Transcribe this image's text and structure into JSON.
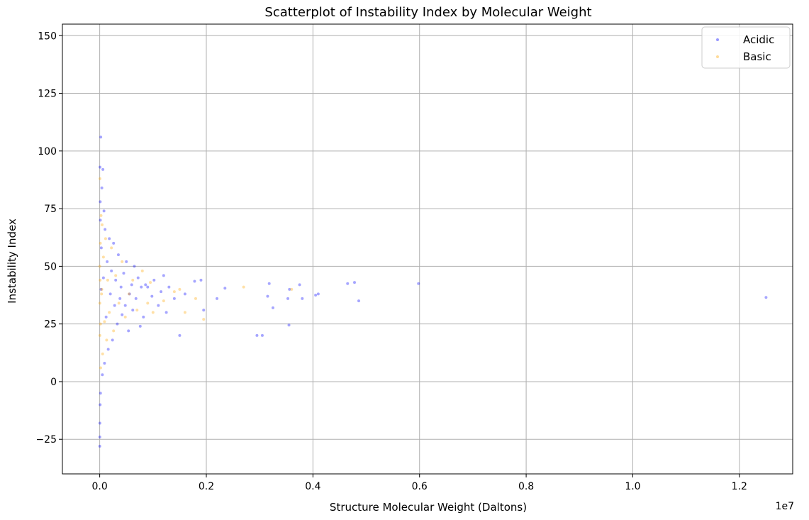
{
  "chart_data": {
    "type": "scatter",
    "title": "Scatterplot of Instability Index by Molecular Weight",
    "xlabel": "Structure Molecular Weight (Daltons)",
    "ylabel": "Instability Index",
    "x_offset_label": "1e7",
    "x_scale_exponent": 7,
    "xlim": [
      -700000,
      13000000
    ],
    "ylim": [
      -40,
      155
    ],
    "x_ticks": [
      0,
      2000000,
      4000000,
      6000000,
      8000000,
      10000000,
      12000000
    ],
    "x_tick_labels": [
      "0.0",
      "0.2",
      "0.4",
      "0.6",
      "0.8",
      "1.0",
      "1.2"
    ],
    "y_ticks": [
      -25,
      0,
      25,
      50,
      75,
      100,
      125,
      150
    ],
    "y_tick_labels": [
      "−25",
      "0",
      "25",
      "50",
      "75",
      "100",
      "125",
      "150"
    ],
    "grid": true,
    "legend_position": "top-right",
    "series": [
      {
        "name": "Acidic",
        "color": "#0000ff",
        "points": [
          [
            12500000,
            36.5
          ],
          [
            5980000,
            42.5
          ],
          [
            4860000,
            35
          ],
          [
            4780000,
            43
          ],
          [
            4650000,
            42.5
          ],
          [
            4100000,
            38
          ],
          [
            4050000,
            37.5
          ],
          [
            3800000,
            36
          ],
          [
            3750000,
            42
          ],
          [
            3560000,
            40
          ],
          [
            3530000,
            36
          ],
          [
            3550000,
            24.5
          ],
          [
            3250000,
            32
          ],
          [
            3180000,
            42.5
          ],
          [
            3150000,
            37
          ],
          [
            3050000,
            20
          ],
          [
            2950000,
            20
          ],
          [
            2350000,
            40.5
          ],
          [
            2200000,
            36
          ],
          [
            1950000,
            31
          ],
          [
            1900000,
            44
          ],
          [
            1780000,
            43.5
          ],
          [
            1600000,
            38
          ],
          [
            1500000,
            20
          ],
          [
            1400000,
            36
          ],
          [
            1300000,
            41
          ],
          [
            1250000,
            30
          ],
          [
            1200000,
            46
          ],
          [
            1150000,
            39
          ],
          [
            1100000,
            33
          ],
          [
            1020000,
            44
          ],
          [
            980000,
            37
          ],
          [
            900000,
            41
          ],
          [
            860000,
            42
          ],
          [
            820000,
            28
          ],
          [
            780000,
            41
          ],
          [
            760000,
            24
          ],
          [
            720000,
            45
          ],
          [
            680000,
            36
          ],
          [
            650000,
            50
          ],
          [
            620000,
            31
          ],
          [
            600000,
            42
          ],
          [
            560000,
            38
          ],
          [
            540000,
            22
          ],
          [
            500000,
            52
          ],
          [
            480000,
            33
          ],
          [
            450000,
            47
          ],
          [
            420000,
            29
          ],
          [
            400000,
            41
          ],
          [
            380000,
            36
          ],
          [
            350000,
            55
          ],
          [
            330000,
            25
          ],
          [
            300000,
            44
          ],
          [
            280000,
            33
          ],
          [
            260000,
            60
          ],
          [
            240000,
            18
          ],
          [
            220000,
            48
          ],
          [
            200000,
            38
          ],
          [
            180000,
            62
          ],
          [
            160000,
            14
          ],
          [
            140000,
            52
          ],
          [
            120000,
            28
          ],
          [
            100000,
            66
          ],
          [
            90000,
            8
          ],
          [
            80000,
            74
          ],
          [
            70000,
            45
          ],
          [
            60000,
            92
          ],
          [
            50000,
            3
          ],
          [
            40000,
            84
          ],
          [
            30000,
            58
          ],
          [
            20000,
            106
          ],
          [
            15000,
            -5
          ],
          [
            10000,
            78
          ],
          [
            5000,
            93
          ],
          [
            3000,
            -18
          ],
          [
            2000,
            -24
          ],
          [
            1000,
            -28
          ],
          [
            8000,
            -10
          ],
          [
            12000,
            70
          ],
          [
            25000,
            40
          ]
        ]
      },
      {
        "name": "Basic",
        "color": "#ffa500",
        "points": [
          [
            3600000,
            40
          ],
          [
            2700000,
            41
          ],
          [
            1950000,
            27
          ],
          [
            1800000,
            36
          ],
          [
            1600000,
            30
          ],
          [
            1500000,
            40
          ],
          [
            1400000,
            39
          ],
          [
            1200000,
            35
          ],
          [
            1000000,
            30
          ],
          [
            950000,
            43
          ],
          [
            900000,
            34
          ],
          [
            800000,
            48
          ],
          [
            700000,
            31
          ],
          [
            620000,
            44
          ],
          [
            550000,
            38
          ],
          [
            480000,
            28
          ],
          [
            420000,
            52
          ],
          [
            360000,
            34
          ],
          [
            300000,
            46
          ],
          [
            260000,
            22
          ],
          [
            220000,
            58
          ],
          [
            180000,
            30
          ],
          [
            150000,
            44
          ],
          [
            130000,
            18
          ],
          [
            110000,
            62
          ],
          [
            90000,
            26
          ],
          [
            70000,
            54
          ],
          [
            55000,
            12
          ],
          [
            45000,
            68
          ],
          [
            35000,
            38
          ],
          [
            25000,
            72
          ],
          [
            18000,
            6
          ],
          [
            12000,
            60
          ],
          [
            8000,
            44
          ],
          [
            5000,
            88
          ],
          [
            3000,
            20
          ],
          [
            2000,
            34
          ],
          [
            1000,
            50
          ],
          [
            15000,
            25
          ],
          [
            40000,
            40
          ]
        ]
      }
    ]
  }
}
